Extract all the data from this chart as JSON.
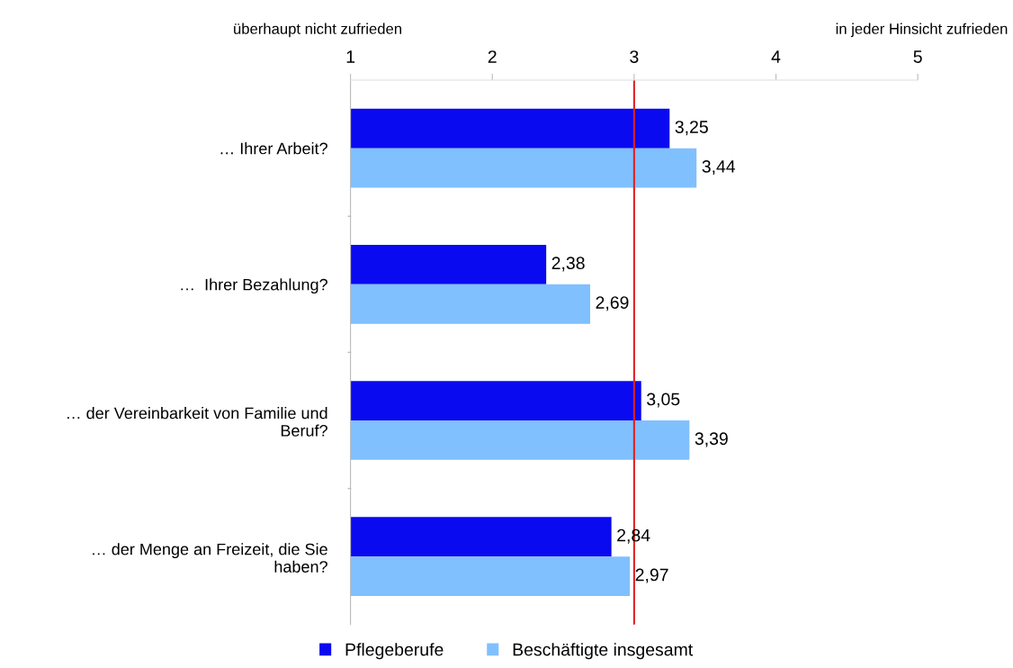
{
  "chart_data": {
    "type": "bar",
    "orientation": "horizontal",
    "categories": [
      "… Ihrer Arbeit?",
      "…  Ihrer Bezahlung?",
      "… der Vereinbarkeit von Familie und\nBeruf?",
      "… der Menge an Freizeit, die Sie\nhaben?"
    ],
    "series": [
      {
        "name": "Pflegeberufe",
        "color": "#0a0af0",
        "values": [
          3.25,
          2.38,
          3.05,
          2.84
        ],
        "value_labels": [
          "3,25",
          "2,38",
          "3,05",
          "2,84"
        ]
      },
      {
        "name": "Beschäftigte insgesamt",
        "color": "#80c0ff",
        "values": [
          3.44,
          2.69,
          3.39,
          2.97
        ],
        "value_labels": [
          "3,44",
          "2,69",
          "3,39",
          "2,97"
        ]
      }
    ],
    "xlim": [
      1,
      5
    ],
    "xticks": [
      1,
      2,
      3,
      4,
      5
    ],
    "ref_lines": [
      {
        "axis": "x",
        "value": 3,
        "color": "#e02020",
        "line_style": "solid"
      }
    ],
    "annotations": [
      "überhaupt nicht zufrieden",
      "in jeder Hinsicht zufrieden"
    ],
    "grid": false,
    "legend": "bottom"
  }
}
